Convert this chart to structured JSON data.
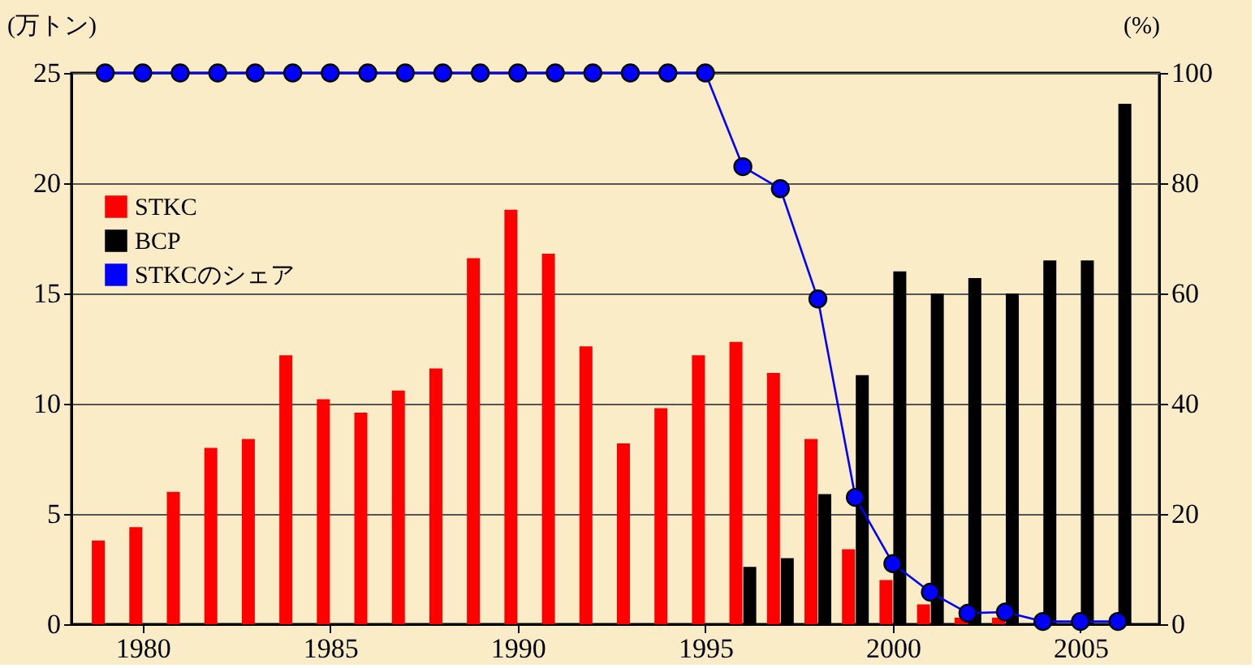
{
  "chart_data": {
    "type": "bar",
    "ylabel": "(万トン)",
    "y2label": "(%)",
    "x": [
      1979,
      1980,
      1981,
      1982,
      1983,
      1984,
      1985,
      1986,
      1987,
      1988,
      1989,
      1990,
      1991,
      1992,
      1993,
      1994,
      1995,
      1996,
      1997,
      1998,
      1999,
      2000,
      2001,
      2002,
      2003,
      2004,
      2005,
      2006
    ],
    "xlim": [
      1978.1,
      2007.1
    ],
    "xticks": [
      1980,
      1985,
      1990,
      1995,
      2000,
      2005
    ],
    "ylim": [
      0,
      25
    ],
    "yticks": [
      0,
      5,
      10,
      15,
      20,
      25
    ],
    "y2lim": [
      0,
      100
    ],
    "y2ticks": [
      0,
      20,
      40,
      60,
      80,
      100
    ],
    "series": [
      {
        "name": "STKC",
        "color": "#ff0000",
        "values": [
          3.8,
          4.4,
          6.0,
          8.0,
          8.4,
          12.2,
          10.2,
          9.6,
          10.6,
          11.6,
          16.6,
          18.8,
          16.8,
          12.6,
          8.2,
          9.8,
          12.2,
          12.8,
          11.4,
          8.4,
          3.4,
          2.0,
          0.9,
          0.3,
          0.3,
          null,
          null,
          null
        ]
      },
      {
        "name": "BCP",
        "color": "#000000",
        "values": [
          null,
          null,
          null,
          null,
          null,
          null,
          null,
          null,
          null,
          null,
          null,
          null,
          null,
          null,
          null,
          null,
          null,
          2.6,
          3.0,
          5.9,
          11.3,
          16.0,
          15.0,
          15.7,
          15.0,
          16.5,
          16.5,
          23.6
        ]
      },
      {
        "name": "STKCのシェア",
        "type": "line",
        "axis": "y2",
        "color": "#0000ff",
        "marker": "circle",
        "values": [
          100,
          100,
          100,
          100,
          100,
          100,
          100,
          100,
          100,
          100,
          100,
          100,
          100,
          100,
          100,
          100,
          100,
          83,
          79,
          59,
          23,
          11,
          5.8,
          2.0,
          2.2,
          0.5,
          0.5,
          0.5
        ]
      }
    ],
    "grid": "y",
    "legend": "top left"
  }
}
